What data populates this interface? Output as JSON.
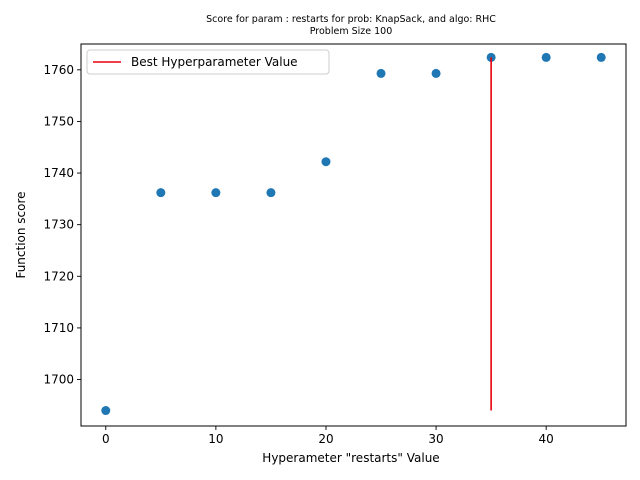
{
  "chart_data": {
    "type": "scatter",
    "title": "Score for param : restarts for prob: KnapSack, and algo: RHC",
    "subtitle": "Problem Size 100",
    "xlabel": "Hyperameter \"restarts\" Value",
    "ylabel": "Function score",
    "xlim": [
      -2.25,
      47.25
    ],
    "ylim": [
      1691,
      1765
    ],
    "xticks": [
      0,
      10,
      20,
      30,
      40
    ],
    "yticks": [
      1700,
      1710,
      1720,
      1730,
      1740,
      1750,
      1760
    ],
    "grid": false,
    "legend_position": "top-left",
    "points": {
      "x": [
        0,
        5,
        10,
        15,
        20,
        25,
        30,
        35,
        40,
        45
      ],
      "y": [
        1694,
        1736.2,
        1736.2,
        1736.2,
        1742.2,
        1759.3,
        1759.3,
        1762.4,
        1762.4,
        1762.4
      ]
    },
    "best_line": {
      "name": "Best Hyperparameter Value",
      "x": 35,
      "y_from": 1694,
      "y_to": 1762.4
    },
    "colors": {
      "points": "#1f77b4",
      "best_line": "#e8000b"
    }
  }
}
